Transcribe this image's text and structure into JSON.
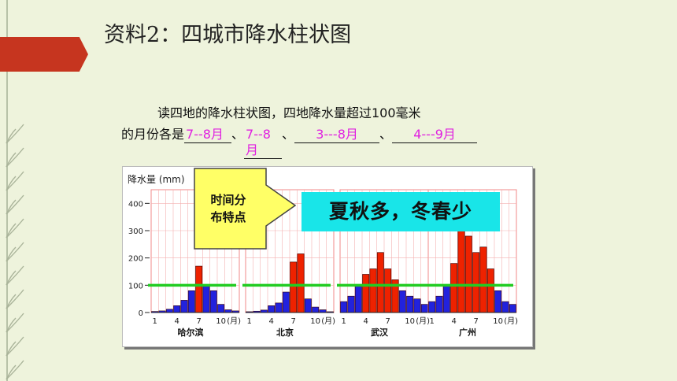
{
  "slide": {
    "title": "资料2：四城市降水柱状图",
    "question_line1": "读四地的降水柱状图，四地降水量超过100毫米",
    "question_prefix": "的月份各是",
    "sep1": "、",
    "sep2": "、",
    "sep3": "、",
    "answers": [
      "7--8月",
      "7--8 月",
      "3---8月",
      "4---9月"
    ],
    "callout_line1": "时间分",
    "callout_line2": "布特点",
    "highlight": "夏秋多，冬春少",
    "colors": {
      "background": "#eef3dc",
      "accent_red": "#c6351f",
      "answer_magenta": "#e020e0",
      "cyan": "#19e5e8",
      "callout_yellow": "#ffff66"
    }
  },
  "chart_data": {
    "type": "bar",
    "ylabel": "降水量 (mm)",
    "ylim": [
      0,
      450
    ],
    "yticks": [
      0,
      100,
      200,
      300,
      400
    ],
    "xticks": [
      "1",
      "4",
      "7",
      "10"
    ],
    "xunit": "(月)",
    "threshold": 100,
    "grid": true,
    "panels": [
      {
        "name": "哈尔滨",
        "values": [
          4,
          6,
          12,
          25,
          45,
          80,
          170,
          100,
          80,
          30,
          10,
          6
        ]
      },
      {
        "name": "北京",
        "values": [
          3,
          5,
          9,
          25,
          35,
          75,
          185,
          215,
          50,
          20,
          10,
          3
        ]
      },
      {
        "name": "武汉",
        "values": [
          40,
          60,
          100,
          140,
          160,
          220,
          160,
          120,
          80,
          60,
          50,
          30
        ]
      },
      {
        "name": "广州",
        "values": [
          40,
          60,
          100,
          180,
          300,
          280,
          220,
          240,
          160,
          80,
          40,
          30
        ]
      }
    ]
  }
}
